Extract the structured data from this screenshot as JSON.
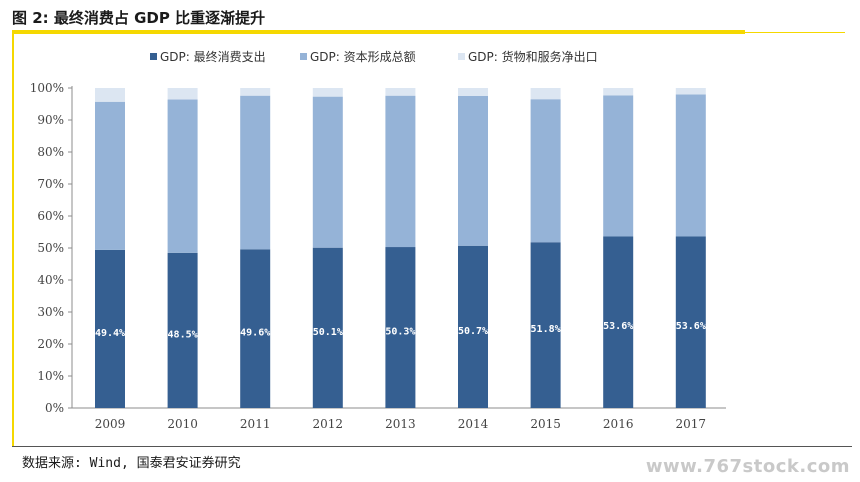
{
  "figure": {
    "title": "图 2: 最终消费占 GDP 比重逐渐提升",
    "source": "数据来源: Wind, 国泰君安证券研究",
    "watermark": "www.767stock.com"
  },
  "chart_data": {
    "type": "bar",
    "stacked": true,
    "percent": true,
    "categories": [
      "2009",
      "2010",
      "2011",
      "2012",
      "2013",
      "2014",
      "2015",
      "2016",
      "2017"
    ],
    "series": [
      {
        "name": "GDP: 最终消费支出",
        "color": "#355f91",
        "values": [
          49.4,
          48.5,
          49.6,
          50.1,
          50.3,
          50.7,
          51.8,
          53.6,
          53.6
        ],
        "labels": [
          "49.4%",
          "48.5%",
          "49.6%",
          "50.1%",
          "50.3%",
          "50.7%",
          "51.8%",
          "53.6%",
          "53.6%"
        ]
      },
      {
        "name": "GDP: 资本形成总额",
        "color": "#95b3d7",
        "values": [
          46.3,
          47.9,
          48.0,
          47.2,
          47.3,
          46.8,
          44.7,
          44.1,
          44.4
        ]
      },
      {
        "name": "GDP: 货物和服务净出口",
        "color": "#dce6f2",
        "values": [
          4.3,
          3.6,
          2.4,
          2.7,
          2.4,
          2.5,
          3.5,
          2.3,
          2.0
        ]
      }
    ],
    "y_ticks": [
      "0%",
      "10%",
      "20%",
      "30%",
      "40%",
      "50%",
      "60%",
      "70%",
      "80%",
      "90%",
      "100%"
    ],
    "ylim": [
      0,
      100
    ],
    "legend_position": "top",
    "grid": false
  }
}
